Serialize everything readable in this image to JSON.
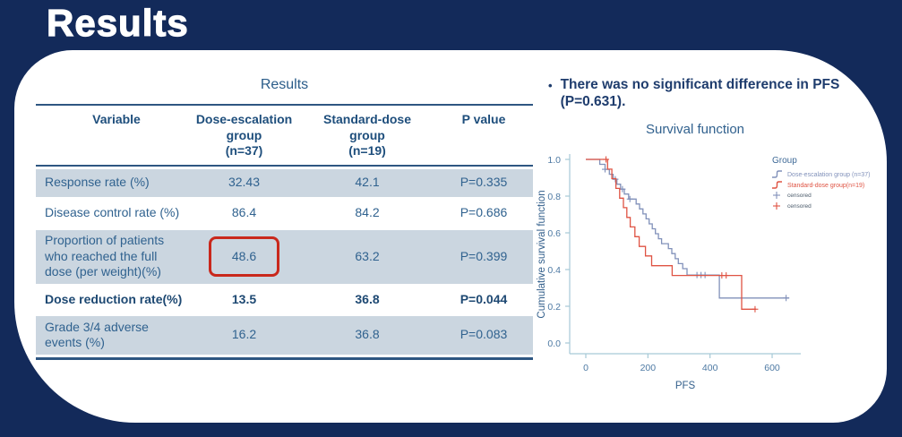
{
  "slide": {
    "title": "Results"
  },
  "colors": {
    "background": "#132a5a",
    "panel": "#ffffff",
    "header_text": "#1e4e7c",
    "cell_text": "#30628f",
    "shaded_row": "#cbd6e0",
    "rule": "#2e5682",
    "highlight_red": "#c9281c",
    "callout_text": "#1e3c6d",
    "curve_blue": "#8191ba",
    "curve_red": "#df5343",
    "axis": "#a6c9d7"
  },
  "table": {
    "title": "Results",
    "columns": [
      "Variable",
      "Dose-escalation\ngroup\n(n=37)",
      "Standard-dose\ngroup\n(n=19)",
      "P value"
    ],
    "rows": [
      [
        "Response rate (%)",
        "32.43",
        "42.1",
        "P=0.335"
      ],
      [
        "Disease control rate (%)",
        "86.4",
        "84.2",
        "P=0.686"
      ],
      [
        "Proportion of patients\nwho reached the full\ndose (per weight)(%)",
        "48.6",
        "63.2",
        "P=0.399"
      ],
      [
        "Dose reduction rate(%)",
        "13.5",
        "36.8",
        "P=0.044"
      ],
      [
        "Grade 3/4 adverse\nevents (%)",
        "16.2",
        "36.8",
        "P=0.083"
      ]
    ],
    "highlight": {
      "row_index": 2,
      "column_index": 1
    }
  },
  "callout": {
    "bullet": "•",
    "text": "There was no significant difference in PFS (P=0.631)."
  },
  "chart_data": {
    "type": "line",
    "subtype": "kaplan-meier-step",
    "title": "Survival function",
    "xlabel": "PFS",
    "ylabel": "Cumulative survival function",
    "xlim": [
      0,
      690
    ],
    "ylim": [
      0.0,
      1.0
    ],
    "xticks": [
      0,
      200,
      400,
      600
    ],
    "yticks": [
      0.0,
      0.2,
      0.4,
      0.6,
      0.8,
      1.0
    ],
    "grid": false,
    "legend_position": "upper-right",
    "legend_title": "Group",
    "censored_label": "censored",
    "series": [
      {
        "name": "Dose-escalation group (n=37)",
        "color": "#8191ba",
        "steps": [
          [
            0,
            1.0
          ],
          [
            45,
            0.973
          ],
          [
            62,
            0.946
          ],
          [
            76,
            0.919
          ],
          [
            88,
            0.892
          ],
          [
            100,
            0.865
          ],
          [
            112,
            0.838
          ],
          [
            124,
            0.811
          ],
          [
            138,
            0.784
          ],
          [
            162,
            0.757
          ],
          [
            173,
            0.73
          ],
          [
            184,
            0.703
          ],
          [
            194,
            0.676
          ],
          [
            204,
            0.649
          ],
          [
            214,
            0.622
          ],
          [
            224,
            0.595
          ],
          [
            234,
            0.568
          ],
          [
            244,
            0.541
          ],
          [
            266,
            0.514
          ],
          [
            277,
            0.487
          ],
          [
            288,
            0.459
          ],
          [
            298,
            0.432
          ],
          [
            312,
            0.405
          ],
          [
            326,
            0.37
          ],
          [
            430,
            0.245
          ]
        ],
        "end_x": 655,
        "censored": [
          [
            62,
            0.946
          ],
          [
            95,
            0.892
          ],
          [
            118,
            0.838
          ],
          [
            142,
            0.784
          ],
          [
            358,
            0.37
          ],
          [
            371,
            0.37
          ],
          [
            384,
            0.37
          ],
          [
            645,
            0.245
          ]
        ]
      },
      {
        "name": "Standard-dose group(n=19)",
        "color": "#df5343",
        "steps": [
          [
            0,
            1.0
          ],
          [
            70,
            0.947
          ],
          [
            84,
            0.895
          ],
          [
            97,
            0.842
          ],
          [
            109,
            0.789
          ],
          [
            121,
            0.737
          ],
          [
            132,
            0.684
          ],
          [
            143,
            0.632
          ],
          [
            158,
            0.579
          ],
          [
            172,
            0.526
          ],
          [
            192,
            0.474
          ],
          [
            212,
            0.421
          ],
          [
            278,
            0.368
          ],
          [
            502,
            0.184
          ]
        ],
        "end_x": 548,
        "censored": [
          [
            65,
            1.0
          ],
          [
            438,
            0.368
          ],
          [
            452,
            0.368
          ],
          [
            545,
            0.184
          ]
        ]
      }
    ]
  }
}
